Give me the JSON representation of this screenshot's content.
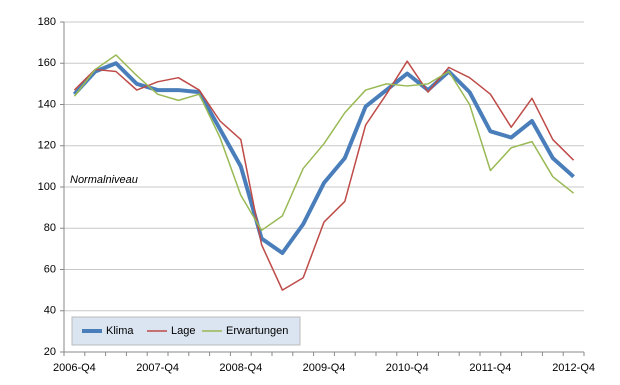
{
  "chart_data": {
    "type": "line",
    "categories": [
      "2006-Q4",
      null,
      null,
      null,
      "2007-Q4",
      null,
      null,
      null,
      "2008-Q4",
      null,
      null,
      null,
      "2009-Q4",
      null,
      null,
      null,
      "2010-Q4",
      null,
      null,
      null,
      "2011-Q4",
      null,
      null,
      null,
      "2012-Q4"
    ],
    "series": [
      {
        "name": "Klima",
        "color": "#4a7ebb",
        "values": [
          145,
          156,
          160,
          150,
          147,
          147,
          146,
          128,
          110,
          75,
          68,
          82,
          102,
          114,
          139,
          147,
          155,
          147,
          156,
          146,
          127,
          124,
          132,
          114,
          105
        ]
      },
      {
        "name": "Lage",
        "color": "#be4b48",
        "values": [
          147,
          157,
          156,
          147,
          151,
          153,
          147,
          132,
          123,
          72,
          50,
          56,
          83,
          93,
          130,
          145,
          161,
          146,
          158,
          153,
          145,
          129,
          143,
          123,
          113
        ]
      },
      {
        "name": "Erwartungen",
        "color": "#98b954",
        "values": [
          144,
          157,
          164,
          154,
          145,
          142,
          145,
          124,
          96,
          79,
          86,
          109,
          121,
          136,
          147,
          150,
          149,
          150,
          156,
          140,
          108,
          119,
          122,
          105,
          97
        ]
      }
    ],
    "ylim": [
      20,
      180
    ],
    "yticks": [
      20,
      40,
      60,
      80,
      100,
      120,
      140,
      160,
      180
    ],
    "grid": true,
    "annotation": "Normalniveau",
    "legend": "bottom-left"
  }
}
